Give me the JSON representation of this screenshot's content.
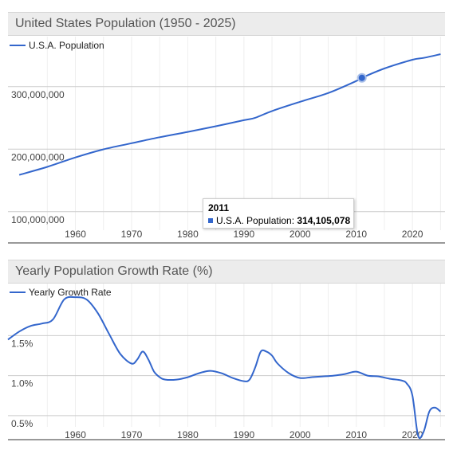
{
  "chart_data": [
    {
      "type": "line",
      "title": "United States Population (1950 - 2025)",
      "series": [
        {
          "name": "U.S.A. Population",
          "color": "#3366cc",
          "x": [
            1950,
            1955,
            1960,
            1965,
            1970,
            1975,
            1980,
            1985,
            1990,
            1992,
            1995,
            2000,
            2005,
            2010,
            2011,
            2015,
            2020,
            2022,
            2025
          ],
          "values": [
            158800000,
            171700000,
            186700000,
            199700000,
            209500000,
            219100000,
            227600000,
            236700000,
            246400000,
            250200000,
            261000000,
            275800000,
            289800000,
            309000000,
            314105078,
            329000000,
            343000000,
            346000000,
            352000000
          ]
        }
      ],
      "xlim": [
        1948,
        2025.8
      ],
      "ylim": [
        50000000,
        380000000
      ],
      "xticks": [
        "1960",
        "1970",
        "1980",
        "1990",
        "2000",
        "2010",
        "2020"
      ],
      "yticks": [
        "100,000,000",
        "200,000,000",
        "300,000,000"
      ],
      "legend": "top-left",
      "tooltip": {
        "year": "2011",
        "series": "U.S.A. Population:",
        "value": "314,105,078"
      }
    },
    {
      "type": "line",
      "title": "Yearly Population Growth Rate (%)",
      "series": [
        {
          "name": "Yearly Growth Rate",
          "color": "#3366cc",
          "x": [
            1948,
            1950,
            1952,
            1954,
            1956,
            1958,
            1960,
            1962,
            1964,
            1966,
            1968,
            1970,
            1971,
            1972,
            1973,
            1974,
            1975,
            1976,
            1978,
            1980,
            1982,
            1984,
            1986,
            1988,
            1990,
            1991,
            1992,
            1993,
            1994,
            1995,
            1996,
            1998,
            2000,
            2002,
            2004,
            2006,
            2008,
            2010,
            2012,
            2014,
            2016,
            2018,
            2019,
            2020,
            2021,
            2022,
            2023,
            2024,
            2025
          ],
          "values": [
            1.45,
            1.55,
            1.62,
            1.65,
            1.7,
            1.95,
            1.98,
            1.95,
            1.78,
            1.52,
            1.27,
            1.15,
            1.2,
            1.3,
            1.2,
            1.05,
            0.98,
            0.95,
            0.95,
            0.98,
            1.03,
            1.06,
            1.03,
            0.97,
            0.93,
            0.95,
            1.1,
            1.3,
            1.3,
            1.25,
            1.15,
            1.03,
            0.97,
            0.98,
            0.99,
            1.0,
            1.02,
            1.05,
            1.0,
            0.99,
            0.96,
            0.94,
            0.9,
            0.75,
            0.25,
            0.3,
            0.55,
            0.6,
            0.55
          ]
        }
      ],
      "xlim": [
        1948,
        2025.8
      ],
      "ylim": [
        0.2,
        2.15
      ],
      "xticks": [
        "1960",
        "1970",
        "1980",
        "1990",
        "2000",
        "2010",
        "2020"
      ],
      "yticks": [
        "0.5%",
        "1.0%",
        "1.5%"
      ],
      "legend": "top-left"
    }
  ]
}
